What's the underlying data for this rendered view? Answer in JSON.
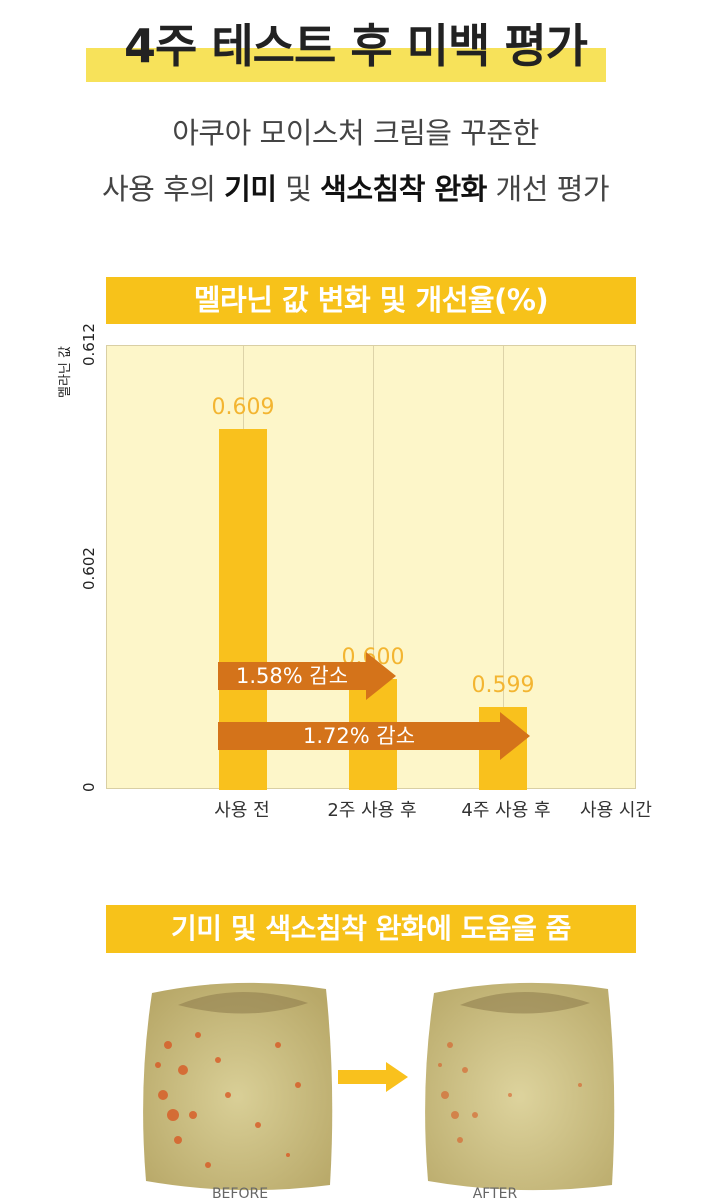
{
  "header": {
    "title": "4주 테스트 후 미백 평가",
    "subtitle_line1": "아쿠아 모이스처 크림을 꾸준한",
    "subtitle_line2_pre": "사용 후의 ",
    "subtitle_line2_b1": "기미",
    "subtitle_line2_mid": " 및 ",
    "subtitle_line2_b2": "색소침착 완화",
    "subtitle_line2_post": " 개선 평가"
  },
  "chart_data": {
    "type": "bar",
    "title": "멜라닌 값 변화 및 개선율(%)",
    "ylabel": "멜라닌 값",
    "xlabel": "사용 시간",
    "categories": [
      "사용 전",
      "2주 사용 후",
      "4주 사용 후"
    ],
    "values": [
      0.609,
      0.6,
      0.599
    ],
    "value_labels": [
      "0.609",
      "0.600",
      "0.599"
    ],
    "yticks": [
      "0.612",
      "0.602",
      "0"
    ],
    "grid": true,
    "bar_color": "#f9c11d",
    "annotations": [
      {
        "text": "1.58% 감소",
        "from": "사용 전",
        "to": "2주 사용 후"
      },
      {
        "text": "1.72% 감소",
        "from": "사용 전",
        "to": "4주 사용 후"
      }
    ],
    "arrow_color": "#d4731a"
  },
  "section2": {
    "banner": "기미 및 색소침착 완화에 도움을 줌",
    "before_label": "BEFORE",
    "after_label": "AFTER"
  },
  "colors": {
    "accent": "#f7c21a",
    "highlight": "#f7e25a",
    "plot_bg": "#fdf6c9"
  }
}
